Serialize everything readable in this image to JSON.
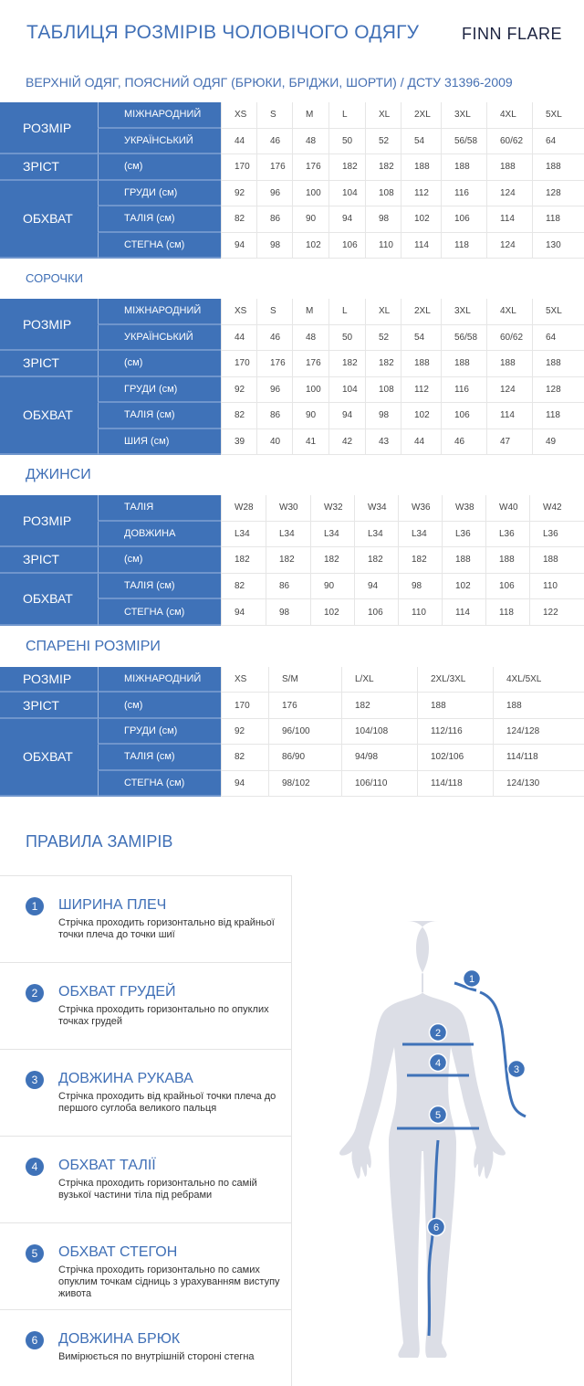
{
  "header": {
    "title": "ТАБЛИЦЯ РОЗМІРІВ ЧОЛОВІЧОГО ОДЯГУ",
    "logo": "FINN FLARE"
  },
  "colors": {
    "accent": "#3f72b8",
    "figure": "#dcdee6"
  },
  "tables": [
    {
      "heading": "ВЕРХНІЙ ОДЯГ, ПОЯСНИЙ ОДЯГ (БРЮКИ, БРІДЖИ, ШОРТИ) / ДСТУ 31396-2009",
      "groups": [
        {
          "label": "РОЗМІР",
          "rows": [
            {
              "label": "МІЖНАРОДНИЙ",
              "values": [
                "XS",
                "S",
                "M",
                "L",
                "XL",
                "2XL",
                "3XL",
                "4XL",
                "5XL"
              ]
            },
            {
              "label": "УКРАЇНСЬКИЙ",
              "values": [
                "44",
                "46",
                "48",
                "50",
                "52",
                "54",
                "56/58",
                "60/62",
                "64"
              ]
            }
          ]
        },
        {
          "label": "ЗРІСТ",
          "rows": [
            {
              "label": "(см)",
              "values": [
                "170",
                "176",
                "176",
                "182",
                "182",
                "188",
                "188",
                "188",
                "188"
              ]
            }
          ]
        },
        {
          "label": "ОБХВАТ",
          "rows": [
            {
              "label": "ГРУДИ (см)",
              "values": [
                "92",
                "96",
                "100",
                "104",
                "108",
                "112",
                "116",
                "124",
                "128"
              ]
            },
            {
              "label": "ТАЛІЯ (см)",
              "values": [
                "82",
                "86",
                "90",
                "94",
                "98",
                "102",
                "106",
                "114",
                "118"
              ]
            },
            {
              "label": "СТЕГНА (см)",
              "values": [
                "94",
                "98",
                "102",
                "106",
                "110",
                "114",
                "118",
                "124",
                "130"
              ]
            }
          ]
        }
      ]
    },
    {
      "heading": "СОРОЧКИ",
      "groups": [
        {
          "label": "РОЗМІР",
          "rows": [
            {
              "label": "МІЖНАРОДНИЙ",
              "values": [
                "XS",
                "S",
                "M",
                "L",
                "XL",
                "2XL",
                "3XL",
                "4XL",
                "5XL"
              ]
            },
            {
              "label": "УКРАЇНСЬКИЙ",
              "values": [
                "44",
                "46",
                "48",
                "50",
                "52",
                "54",
                "56/58",
                "60/62",
                "64"
              ]
            }
          ]
        },
        {
          "label": "ЗРІСТ",
          "rows": [
            {
              "label": "(см)",
              "values": [
                "170",
                "176",
                "176",
                "182",
                "182",
                "188",
                "188",
                "188",
                "188"
              ]
            }
          ]
        },
        {
          "label": "ОБХВАТ",
          "rows": [
            {
              "label": "ГРУДИ (см)",
              "values": [
                "92",
                "96",
                "100",
                "104",
                "108",
                "112",
                "116",
                "124",
                "128"
              ]
            },
            {
              "label": "ТАЛІЯ (см)",
              "values": [
                "82",
                "86",
                "90",
                "94",
                "98",
                "102",
                "106",
                "114",
                "118"
              ]
            },
            {
              "label": "ШИЯ (см)",
              "values": [
                "39",
                "40",
                "41",
                "42",
                "43",
                "44",
                "46",
                "47",
                "49"
              ]
            }
          ]
        }
      ]
    },
    {
      "heading": "ДЖИНСИ",
      "groups": [
        {
          "label": "РОЗМІР",
          "rows": [
            {
              "label": "ТАЛІЯ",
              "values": [
                "W28",
                "W30",
                "W32",
                "W34",
                "W36",
                "W38",
                "W40",
                "W42"
              ]
            },
            {
              "label": "ДОВЖИНА",
              "values": [
                "L34",
                "L34",
                "L34",
                "L34",
                "L34",
                "L36",
                "L36",
                "L36"
              ]
            }
          ]
        },
        {
          "label": "ЗРІСТ",
          "rows": [
            {
              "label": "(см)",
              "values": [
                "182",
                "182",
                "182",
                "182",
                "182",
                "188",
                "188",
                "188"
              ]
            }
          ]
        },
        {
          "label": "ОБХВАТ",
          "rows": [
            {
              "label": "ТАЛІЯ (см)",
              "values": [
                "82",
                "86",
                "90",
                "94",
                "98",
                "102",
                "106",
                "110"
              ]
            },
            {
              "label": "СТЕГНА (см)",
              "values": [
                "94",
                "98",
                "102",
                "106",
                "110",
                "114",
                "118",
                "122"
              ]
            }
          ]
        }
      ]
    },
    {
      "heading": "СПАРЕНІ РОЗМІРИ",
      "groups": [
        {
          "label": "РОЗМІР",
          "rows": [
            {
              "label": "МІЖНАРОДНИЙ",
              "values": [
                "XS",
                "S/M",
                "L/XL",
                "2XL/3XL",
                "4XL/5XL"
              ]
            }
          ]
        },
        {
          "label": "ЗРІСТ",
          "rows": [
            {
              "label": "(см)",
              "values": [
                "170",
                "176",
                "182",
                "188",
                "188"
              ]
            }
          ]
        },
        {
          "label": "ОБХВАТ",
          "rows": [
            {
              "label": "ГРУДИ (см)",
              "values": [
                "92",
                "96/100",
                "104/108",
                "112/116",
                "124/128"
              ]
            },
            {
              "label": "ТАЛІЯ (см)",
              "values": [
                "82",
                "86/90",
                "94/98",
                "102/106",
                "114/118"
              ]
            },
            {
              "label": "СТЕГНА (см)",
              "values": [
                "94",
                "98/102",
                "106/110",
                "114/118",
                "124/130"
              ]
            }
          ]
        }
      ]
    }
  ],
  "rules": {
    "heading": "ПРАВИЛА ЗАМІРІВ",
    "items": [
      {
        "num": "1",
        "title": "ШИРИНА ПЛЕЧ",
        "text": "Стрічка проходить горизонтально від крайньої точки плеча до точки шиї"
      },
      {
        "num": "2",
        "title": "ОБХВАТ ГРУДЕЙ",
        "text": "Стрічка проходить горизонтально по опуклих точках грудей"
      },
      {
        "num": "3",
        "title": "ДОВЖИНА РУКАВА",
        "text": "Стрічка проходить від крайньої точки плеча до першого суглоба великого пальця"
      },
      {
        "num": "4",
        "title": "ОБХВАТ ТАЛІЇ",
        "text": "Стрічка проходить горизонтально по самій вузької частини тіла під ребрами"
      },
      {
        "num": "5",
        "title": "ОБХВАТ СТЕГОН",
        "text": "Стрічка проходить горизонтально по самих опуклим точкам сідниць з урахуванням виступу живота"
      },
      {
        "num": "6",
        "title": "ДОВЖИНА БРЮК",
        "text": "Вимірюється по внутрішній стороні стегна"
      }
    ]
  }
}
